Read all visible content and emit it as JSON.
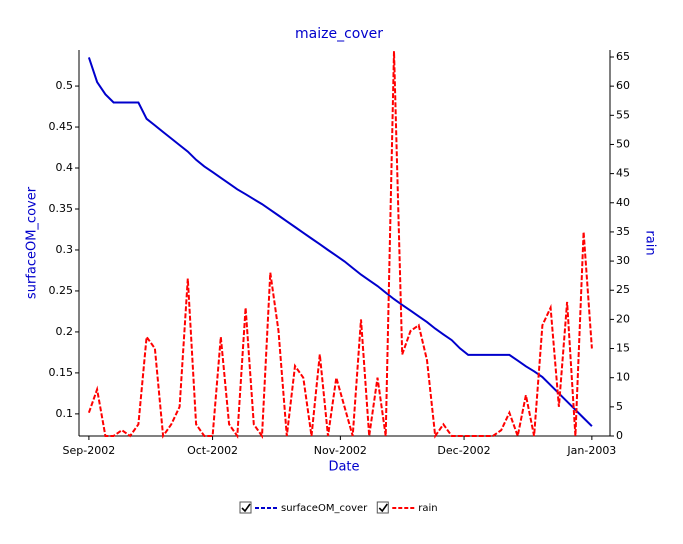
{
  "chart_data": {
    "type": "line",
    "title": "maize_cover",
    "x_label": "Date",
    "y_label": "surfaceOM_cover",
    "y2_label": "rain",
    "x": [
      0,
      2,
      4,
      6,
      8,
      10,
      12,
      14,
      16,
      18,
      20,
      22,
      24,
      26,
      28,
      30,
      32,
      34,
      36,
      38,
      40,
      42,
      44,
      46,
      48,
      50,
      52,
      54,
      56,
      58,
      60,
      62,
      64,
      66,
      68,
      70,
      72,
      74,
      76,
      78,
      80,
      82,
      84,
      86,
      88,
      90,
      92,
      94,
      96,
      98,
      100,
      102,
      104,
      106,
      108,
      110,
      112,
      114,
      116,
      118,
      120,
      122
    ],
    "xlim": [
      -2.4,
      126.4
    ],
    "xticks": [
      {
        "value": 0,
        "label": "Sep-2002"
      },
      {
        "value": 30,
        "label": "Oct-2002"
      },
      {
        "value": 61,
        "label": "Nov-2002"
      },
      {
        "value": 91,
        "label": "Dec-2002"
      },
      {
        "value": 122,
        "label": "Jan-2003"
      }
    ],
    "ylim": [
      0.073,
      0.544
    ],
    "yticks": [
      0.1,
      0.15,
      0.2,
      0.25,
      0.3,
      0.35,
      0.4,
      0.45,
      0.5
    ],
    "y2lim": [
      0,
      66.2
    ],
    "y2ticks": [
      0,
      5,
      10,
      15,
      20,
      25,
      30,
      35,
      40,
      45,
      50,
      55,
      60,
      65
    ],
    "legend": "bottom",
    "series": [
      {
        "name": "surfaceOM_cover",
        "color": "#0000cc",
        "values": [
          0.535,
          0.505,
          0.49,
          0.48,
          0.48,
          0.48,
          0.48,
          0.46,
          0.452,
          0.444,
          0.436,
          0.428,
          0.42,
          0.41,
          0.402,
          0.395,
          0.388,
          0.381,
          0.374,
          0.368,
          0.362,
          0.356,
          0.349,
          0.342,
          0.335,
          0.328,
          0.321,
          0.314,
          0.307,
          0.3,
          0.293,
          0.286,
          0.278,
          0.27,
          0.263,
          0.256,
          0.248,
          0.24,
          0.233,
          0.226,
          0.219,
          0.212,
          0.204,
          0.197,
          0.19,
          0.18,
          0.172,
          0.172,
          0.172,
          0.172,
          0.172,
          0.172,
          0.165,
          0.158,
          0.152,
          0.145,
          0.135,
          0.125,
          0.115,
          0.105,
          0.095,
          0.085
        ]
      },
      {
        "name": "rain",
        "color": "#ff0000",
        "axis": "y2",
        "values": [
          4,
          8,
          0,
          0,
          1,
          0,
          2,
          17,
          15,
          0,
          2,
          5,
          27,
          2,
          0,
          0,
          17,
          2,
          0,
          22,
          2,
          0,
          28,
          18,
          0,
          12,
          10,
          0,
          14,
          0,
          10,
          5,
          0,
          20,
          0,
          10,
          0,
          66,
          14,
          18,
          19,
          13,
          0,
          2,
          0,
          0,
          0,
          0,
          0,
          0,
          1,
          4,
          0,
          7,
          0,
          19,
          22,
          5,
          23,
          0,
          35,
          15
        ]
      }
    ]
  }
}
